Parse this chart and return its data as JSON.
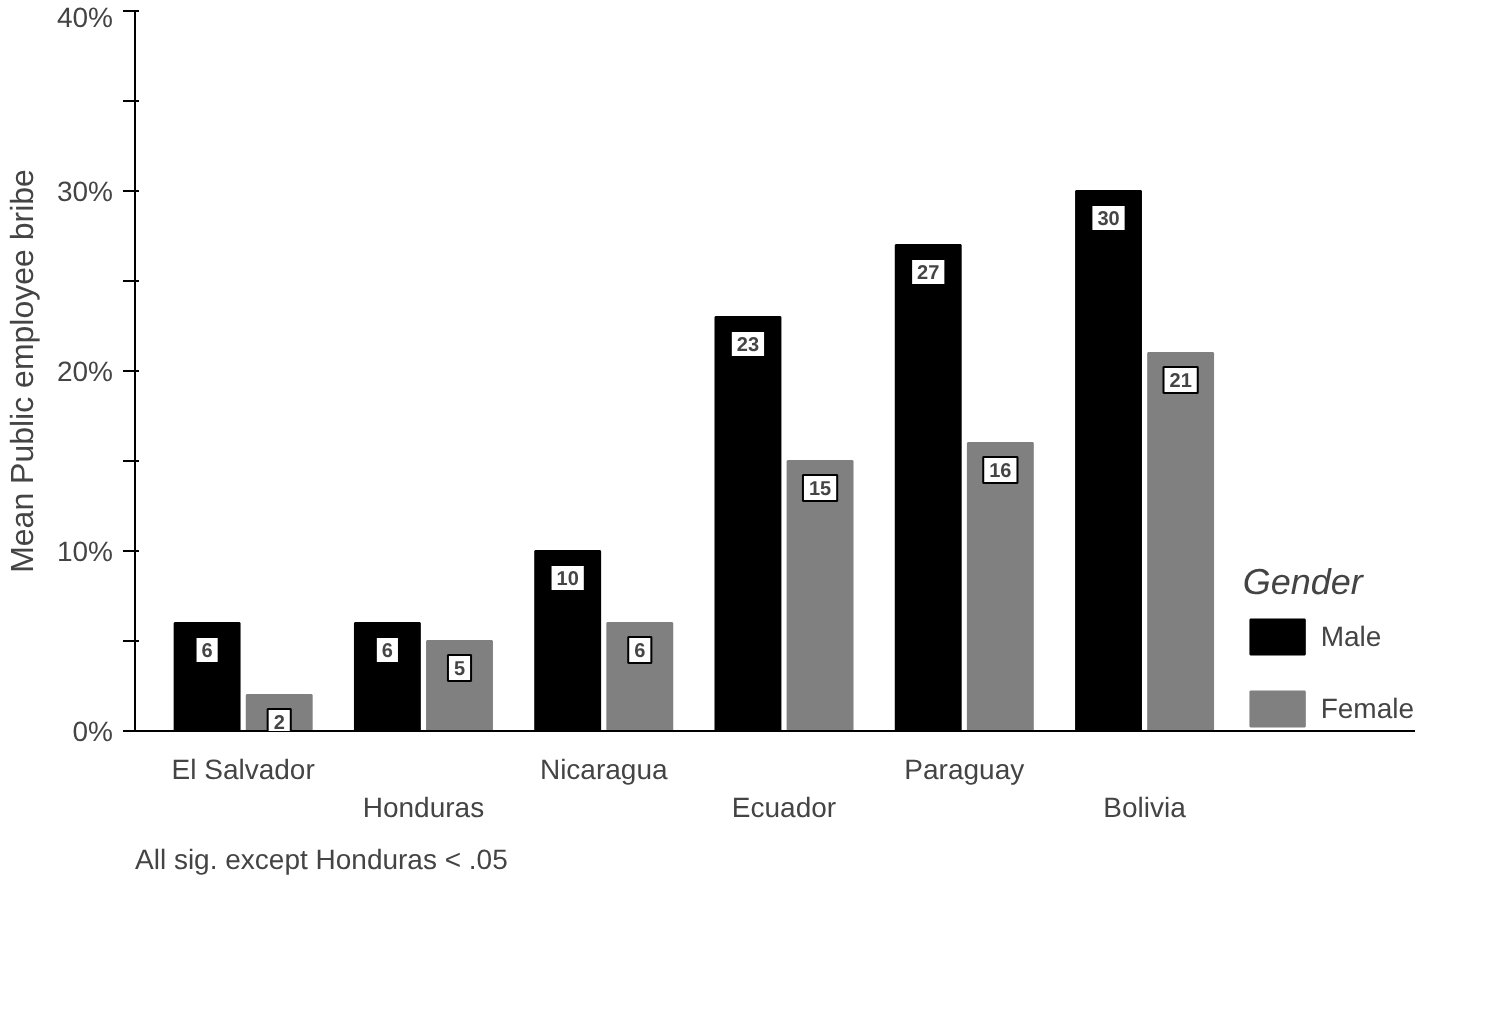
{
  "chart_data": {
    "type": "bar",
    "ylabel": "Mean Public employee bribe",
    "legend_title": "Gender",
    "categories": [
      "El Salvador",
      "Honduras",
      "Nicaragua",
      "Ecuador",
      "Paraguay",
      "Bolivia"
    ],
    "series": [
      {
        "name": "Male",
        "color": "#000000",
        "values": [
          6,
          6,
          10,
          23,
          27,
          30
        ]
      },
      {
        "name": "Female",
        "color": "#808080",
        "values": [
          2,
          5,
          6,
          15,
          16,
          21
        ]
      }
    ],
    "ylim": [
      0,
      40
    ],
    "yticks": [
      {
        "value": 0,
        "label": "0%"
      },
      {
        "value": 5,
        "label": null
      },
      {
        "value": 10,
        "label": "10%"
      },
      {
        "value": 15,
        "label": null
      },
      {
        "value": 20,
        "label": "20%"
      },
      {
        "value": 25,
        "label": null
      },
      {
        "value": 30,
        "label": "30%"
      },
      {
        "value": 35,
        "label": null
      },
      {
        "value": 40,
        "label": "40%"
      }
    ],
    "data_labels": true,
    "grid": false,
    "legend": "right",
    "annotations": [
      "All sig. except Honduras < .05"
    ]
  }
}
